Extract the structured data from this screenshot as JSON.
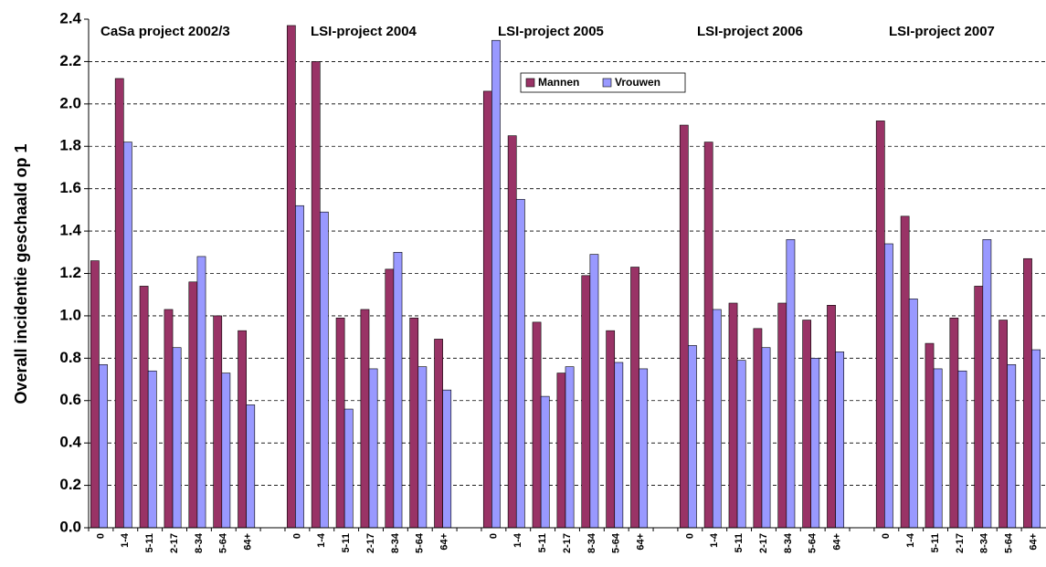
{
  "chart_data": {
    "type": "bar",
    "y_label": "Overall incidentie geschaald op 1",
    "annotations": [
      "CaSa project 2002/3",
      "LSI-project 2004",
      "LSI-project 2005",
      "LSI-project 2006",
      "LSI-project 2007"
    ],
    "categories": [
      "0",
      "1-4",
      "5-11",
      "2-17",
      "8-34",
      "5-64",
      "64+",
      null,
      "0",
      "1-4",
      "5-11",
      "2-17",
      "8-34",
      "5-64",
      "64+",
      null,
      "0",
      "1-4",
      "5-11",
      "2-17",
      "8-34",
      "5-64",
      "64+",
      null,
      "0",
      "1-4",
      "5-11",
      "2-17",
      "8-34",
      "5-64",
      "64+",
      null,
      "0",
      "1-4",
      "5-11",
      "2-17",
      "8-34",
      "5-64",
      "64+"
    ],
    "series": [
      {
        "name": "Mannen",
        "color": "#993366",
        "values": [
          1.26,
          2.12,
          1.14,
          1.03,
          1.16,
          1.0,
          0.93,
          null,
          2.37,
          2.2,
          0.99,
          1.03,
          1.22,
          0.99,
          0.89,
          null,
          2.06,
          1.85,
          0.97,
          0.73,
          1.19,
          0.93,
          1.23,
          null,
          1.9,
          1.82,
          1.06,
          0.94,
          1.06,
          0.98,
          1.05,
          null,
          1.92,
          1.47,
          0.87,
          0.99,
          1.14,
          0.98,
          1.27
        ]
      },
      {
        "name": "Vrouwen",
        "color": "#9999ff",
        "values": [
          0.77,
          1.82,
          0.74,
          0.85,
          1.28,
          0.73,
          0.58,
          null,
          1.52,
          1.49,
          0.56,
          0.75,
          1.3,
          0.76,
          0.65,
          null,
          2.3,
          1.55,
          0.62,
          0.76,
          1.29,
          0.78,
          0.75,
          null,
          0.86,
          1.03,
          0.79,
          0.85,
          1.36,
          0.8,
          0.83,
          null,
          1.34,
          1.08,
          0.75,
          0.74,
          1.36,
          0.77,
          0.84
        ]
      }
    ],
    "ylim": [
      0,
      2.4
    ],
    "yticks": [
      {
        "value": 0,
        "label": "0.0"
      },
      0.2,
      0.4,
      0.6,
      0.8,
      {
        "value": 1,
        "label": "1.0"
      },
      1.2,
      1.4,
      1.6,
      1.8,
      {
        "value": 2,
        "label": "2.0"
      },
      2.2,
      2.4
    ],
    "grid": true,
    "legend": "upper center"
  }
}
